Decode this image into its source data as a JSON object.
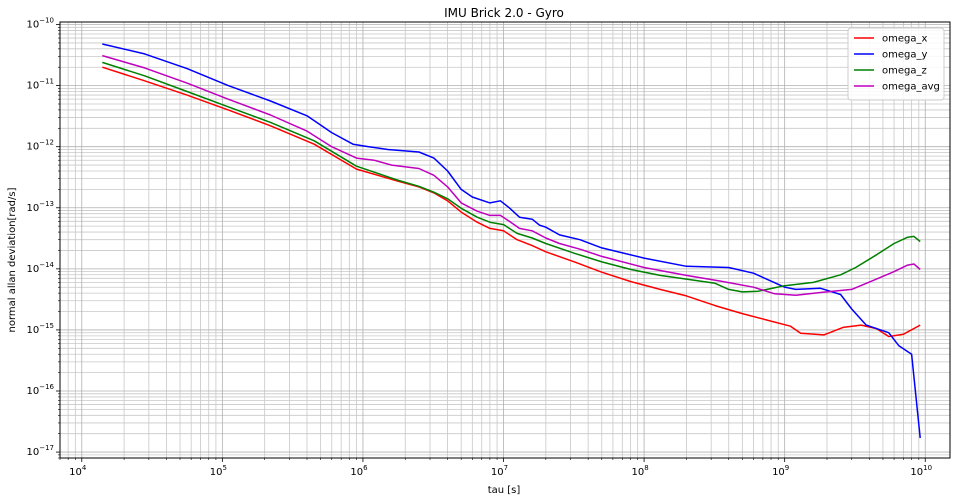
{
  "chart_data": {
    "type": "line",
    "title": "IMU Brick 2.0 - Gyro",
    "xlabel": "tau [s]",
    "ylabel": "normal allan deviation[rad/s]",
    "xscale": "log",
    "yscale": "log",
    "xlim": [
      7000.0,
      15000000000.0
    ],
    "ylim": [
      8e-18,
      1.1e-10
    ],
    "x_ticks": [
      {
        "value": 10000.0,
        "base": "10",
        "exp": "4"
      },
      {
        "value": 100000.0,
        "base": "10",
        "exp": "5"
      },
      {
        "value": 1000000.0,
        "base": "10",
        "exp": "6"
      },
      {
        "value": 10000000.0,
        "base": "10",
        "exp": "7"
      },
      {
        "value": 100000000.0,
        "base": "10",
        "exp": "8"
      },
      {
        "value": 1000000000.0,
        "base": "10",
        "exp": "9"
      },
      {
        "value": 10000000000.0,
        "base": "10",
        "exp": "10"
      }
    ],
    "y_ticks": [
      {
        "value": 1e-17,
        "base": "10",
        "exp": "−17"
      },
      {
        "value": 1e-16,
        "base": "10",
        "exp": "−16"
      },
      {
        "value": 1e-15,
        "base": "10",
        "exp": "−15"
      },
      {
        "value": 1e-14,
        "base": "10",
        "exp": "−14"
      },
      {
        "value": 1e-13,
        "base": "10",
        "exp": "−13"
      },
      {
        "value": 1e-12,
        "base": "10",
        "exp": "−12"
      },
      {
        "value": 1e-11,
        "base": "10",
        "exp": "−11"
      },
      {
        "value": 1e-10,
        "base": "10",
        "exp": "−10"
      }
    ],
    "grid": "major and minor",
    "legend_position": "top-right",
    "series": [
      {
        "name": "omega_x",
        "color": "#ff0000",
        "points": [
          [
            14000.0,
            2e-11
          ],
          [
            28000.0,
            1.2e-11
          ],
          [
            56000.0,
            7e-12
          ],
          [
            110000.0,
            4e-12
          ],
          [
            220000.0,
            2.2e-12
          ],
          [
            450000.0,
            1.1e-12
          ],
          [
            900000.0,
            4.3e-13
          ],
          [
            1800000.0,
            2.7e-13
          ],
          [
            2500000.0,
            2.2e-13
          ],
          [
            3200000.0,
            1.75e-13
          ],
          [
            4000000.0,
            1.3e-13
          ],
          [
            5000000.0,
            8.5e-14
          ],
          [
            6500000.0,
            5.8e-14
          ],
          [
            8000000.0,
            4.6e-14
          ],
          [
            10000000.0,
            4.2e-14
          ],
          [
            12500000.0,
            3e-14
          ],
          [
            16000000.0,
            2.4e-14
          ],
          [
            20000000.0,
            1.9e-14
          ],
          [
            32000000.0,
            1.3e-14
          ],
          [
            50000000.0,
            8.8e-15
          ],
          [
            80000000.0,
            6.2e-15
          ],
          [
            130000000.0,
            4.6e-15
          ],
          [
            200000000.0,
            3.6e-15
          ],
          [
            320000000.0,
            2.5e-15
          ],
          [
            500000000.0,
            1.85e-15
          ],
          [
            750000000.0,
            1.45e-15
          ],
          [
            1100000000.0,
            1.15e-15
          ],
          [
            1300000000.0,
            8.8e-16
          ],
          [
            1900000000.0,
            8.3e-16
          ],
          [
            2600000000.0,
            1.1e-15
          ],
          [
            3500000000.0,
            1.2e-15
          ],
          [
            4500000000.0,
            1.05e-15
          ],
          [
            5500000000.0,
            7.8e-16
          ],
          [
            7000000000.0,
            8.5e-16
          ],
          [
            9200000000.0,
            1.2e-15
          ]
        ]
      },
      {
        "name": "omega_y",
        "color": "#0000ff",
        "points": [
          [
            14000.0,
            4.8e-11
          ],
          [
            28000.0,
            3.3e-11
          ],
          [
            56000.0,
            1.9e-11
          ],
          [
            110000.0,
            1e-11
          ],
          [
            220000.0,
            5.6e-12
          ],
          [
            400000.0,
            3.2e-12
          ],
          [
            600000.0,
            1.7e-12
          ],
          [
            850000.0,
            1.1e-12
          ],
          [
            1100000.0,
            1e-12
          ],
          [
            1500000.0,
            9e-13
          ],
          [
            2500000.0,
            8.2e-13
          ],
          [
            3200000.0,
            6.5e-13
          ],
          [
            4000000.0,
            4e-13
          ],
          [
            5000000.0,
            2e-13
          ],
          [
            6000000.0,
            1.5e-13
          ],
          [
            8000000.0,
            1.2e-13
          ],
          [
            9500000.0,
            1.3e-13
          ],
          [
            11000000.0,
            1e-13
          ],
          [
            13000000.0,
            7e-14
          ],
          [
            16000000.0,
            6.5e-14
          ],
          [
            18000000.0,
            5.2e-14
          ],
          [
            20000000.0,
            4.8e-14
          ],
          [
            25000000.0,
            3.6e-14
          ],
          [
            35000000.0,
            3e-14
          ],
          [
            50000000.0,
            2.2e-14
          ],
          [
            100000000.0,
            1.5e-14
          ],
          [
            200000000.0,
            1.1e-14
          ],
          [
            400000000.0,
            1.05e-14
          ],
          [
            600000000.0,
            8.5e-15
          ],
          [
            1000000000.0,
            5e-15
          ],
          [
            1200000000.0,
            4.6e-15
          ],
          [
            1800000000.0,
            4.8e-15
          ],
          [
            2500000000.0,
            3.8e-15
          ],
          [
            3000000000.0,
            2.2e-15
          ],
          [
            3800000000.0,
            1.2e-15
          ],
          [
            5500000000.0,
            9e-16
          ],
          [
            6500000000.0,
            5.5e-16
          ],
          [
            8000000000.0,
            4e-16
          ],
          [
            9200000000.0,
            1.7e-17
          ]
        ]
      },
      {
        "name": "omega_z",
        "color": "#008000",
        "points": [
          [
            14000.0,
            2.4e-11
          ],
          [
            28000.0,
            1.45e-11
          ],
          [
            56000.0,
            8e-12
          ],
          [
            110000.0,
            4.5e-12
          ],
          [
            220000.0,
            2.5e-12
          ],
          [
            450000.0,
            1.25e-12
          ],
          [
            900000.0,
            4.8e-13
          ],
          [
            1800000.0,
            2.8e-13
          ],
          [
            2500000.0,
            2.25e-13
          ],
          [
            3200000.0,
            1.8e-13
          ],
          [
            4000000.0,
            1.4e-13
          ],
          [
            5000000.0,
            9.8e-14
          ],
          [
            6500000.0,
            7e-14
          ],
          [
            8000000.0,
            5.8e-14
          ],
          [
            10000000.0,
            5.3e-14
          ],
          [
            12500000.0,
            3.8e-14
          ],
          [
            16000000.0,
            3.2e-14
          ],
          [
            20000000.0,
            2.6e-14
          ],
          [
            32000000.0,
            1.8e-14
          ],
          [
            50000000.0,
            1.3e-14
          ],
          [
            80000000.0,
            9.8e-15
          ],
          [
            130000000.0,
            7.8e-15
          ],
          [
            200000000.0,
            6.8e-15
          ],
          [
            320000000.0,
            5.8e-15
          ],
          [
            400000000.0,
            4.6e-15
          ],
          [
            500000000.0,
            4.2e-15
          ],
          [
            650000000.0,
            4.3e-15
          ],
          [
            1000000000.0,
            5.3e-15
          ],
          [
            1600000000.0,
            6e-15
          ],
          [
            2500000000.0,
            8e-15
          ],
          [
            3200000000.0,
            1.05e-14
          ],
          [
            4500000000.0,
            1.7e-14
          ],
          [
            6000000000.0,
            2.6e-14
          ],
          [
            7500000000.0,
            3.3e-14
          ],
          [
            8300000000.0,
            3.4e-14
          ],
          [
            9200000000.0,
            2.8e-14
          ]
        ]
      },
      {
        "name": "omega_avg",
        "color": "#bf00bf",
        "points": [
          [
            14000.0,
            3.1e-11
          ],
          [
            28000.0,
            1.95e-11
          ],
          [
            56000.0,
            1.1e-11
          ],
          [
            110000.0,
            6e-12
          ],
          [
            220000.0,
            3.3e-12
          ],
          [
            400000.0,
            1.8e-12
          ],
          [
            600000.0,
            1e-12
          ],
          [
            900000.0,
            6.5e-13
          ],
          [
            1200000.0,
            6e-13
          ],
          [
            1600000.0,
            5e-13
          ],
          [
            2500000.0,
            4.4e-13
          ],
          [
            3200000.0,
            3.4e-13
          ],
          [
            4000000.0,
            2.2e-13
          ],
          [
            5000000.0,
            1.2e-13
          ],
          [
            6500000.0,
            8.8e-14
          ],
          [
            8000000.0,
            7.5e-14
          ],
          [
            9500000.0,
            7.5e-14
          ],
          [
            11000000.0,
            6e-14
          ],
          [
            13000000.0,
            4.6e-14
          ],
          [
            16000000.0,
            4.2e-14
          ],
          [
            20000000.0,
            3.2e-14
          ],
          [
            25000000.0,
            2.6e-14
          ],
          [
            35000000.0,
            2.1e-14
          ],
          [
            50000000.0,
            1.6e-14
          ],
          [
            100000000.0,
            1.05e-14
          ],
          [
            200000000.0,
            7.8e-15
          ],
          [
            350000000.0,
            6.3e-15
          ],
          [
            600000000.0,
            5e-15
          ],
          [
            850000000.0,
            3.9e-15
          ],
          [
            1200000000.0,
            3.7e-15
          ],
          [
            1800000000.0,
            4.1e-15
          ],
          [
            3000000000.0,
            4.6e-15
          ],
          [
            4500000000.0,
            6.8e-15
          ],
          [
            6000000000.0,
            9e-15
          ],
          [
            7500000000.0,
            1.15e-14
          ],
          [
            8300000000.0,
            1.2e-14
          ],
          [
            9200000000.0,
            9.8e-15
          ]
        ]
      }
    ]
  }
}
